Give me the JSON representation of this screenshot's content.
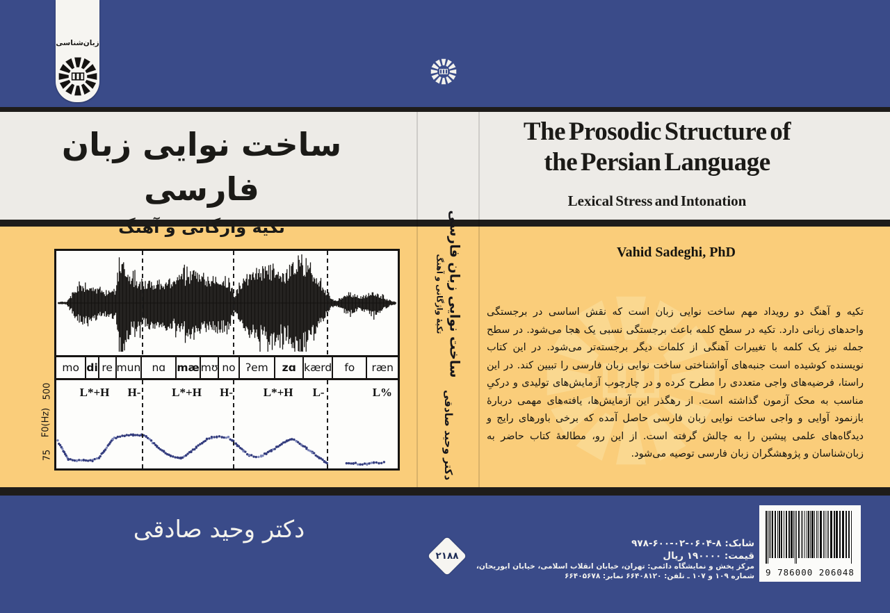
{
  "cover": {
    "publisher_tab": {
      "series_label": "زبان‌شناسی"
    },
    "front": {
      "title_fa": "ساخت نوایی زبان فارسی",
      "subtitle_fa": "تکیهٔ واژگانی و آهنگ",
      "author_fa": "دکتر وحید صادقی"
    },
    "back": {
      "title_en_line1": "The Prosodic Structure of",
      "title_en_line2": "the Persian Language",
      "subtitle_en": "Lexical Stress and Intonation",
      "author_en": "Vahid Sadeghi, PhD",
      "blurb_fa": "تکیه و آهنگ دو رویداد مهم ساخت نوایی زبان است که نقش اساسی در برجستگی واحدهای زبانی دارد. تکیه در سطح کلمه باعث برجستگی نسبی یک هجا می‌شود. در سطح جمله نیز یک کلمه با تغییرات آهنگی از کلمات دیگر برجسته‌تر می‌شود. در این کتاب نویسنده کوشیده است جنبه‌های آواشناختی ساخت نوایی زبان فارسی را تبیین کند. در این راستا، فرضیه‌های واجی متعددی را مطرح کرده و در چارچوب آزمایش‌های تولیدی و درکیِ مناسب به محک آزمون گذاشته است. از رهگذر این آزمایش‌ها، یافته‌های مهمی دربارهٔ بازنمود آوایی و واجی ساخت نوایی زبان فارسی حاصل آمده که برخی باورهای رایج و دیدگاه‌های علمی پیشین را به چالش گرفته است. از این رو، مطالعهٔ کتاب حاضر به زبان‌شناسان و پژوهشگران زبان فارسی توصیه می‌شود.",
      "isbn_label": "شابک:",
      "isbn_value": "۹۷۸-۶۰۰-۰۲-۰۶۰۴-۸",
      "price_line": "قیمت: ۱۹۰۰۰۰ ریال",
      "address_line1": "مرکز پخش و نمایشگاه دائمی: تهران، خیابان انقلاب اسلامی، خیابان ابوریحان،",
      "address_line2": "شماره ۱۰۹ و ۱۰۷ ـ تلفن: ۶۶۴۰۸۱۲۰   نمابر: ۶۶۴۰۵۶۷۸",
      "barcode_digits": "9 786000 206048"
    },
    "spine": {
      "title": "ساخت نوایی زبان فارسی",
      "subtitle": "تکیهٔ واژگانی و آهنگ",
      "author": "دکتر وحید صادقی",
      "code": "۲۱۸۸"
    },
    "colors": {
      "blue": "#3A4B89",
      "yellow": "#FACD7A",
      "cream": "#EDEBE7",
      "band_black": "#1E1C1A",
      "f0_dot": "#343D7E"
    }
  },
  "figure": {
    "type": "waveform-f0",
    "ylabel": "F0(Hz)",
    "ymax": "500",
    "ymin": "75",
    "syllables": [
      {
        "label": "mo",
        "bold": false,
        "w": 9.3
      },
      {
        "label": "di",
        "bold": true,
        "w": 4.1
      },
      {
        "label": "re",
        "bold": false,
        "w": 5.5
      },
      {
        "label": "mun",
        "bold": false,
        "w": 5.7
      },
      {
        "label": "nɑ",
        "bold": false,
        "w": 11.2
      },
      {
        "label": "mæ",
        "bold": true,
        "w": 4.5
      },
      {
        "label": "mʊ",
        "bold": false,
        "w": 4.7
      },
      {
        "label": "no",
        "bold": false,
        "w": 6.5
      },
      {
        "label": "ʔem",
        "bold": false,
        "w": 11.6
      },
      {
        "label": "zɑ",
        "bold": true,
        "w": 9.1
      },
      {
        "label": "kærd",
        "bold": false,
        "w": 6.3
      },
      {
        "label": "fo",
        "bold": false,
        "w": 11.0
      },
      {
        "label": "ræn",
        "bold": false,
        "w": 10.2
      }
    ],
    "boundaries_pct": [
      25.0,
      51.8,
      79.3
    ],
    "tones": [
      {
        "label": "L*+H",
        "x": 11.2
      },
      {
        "label": "H-",
        "x": 22.8
      },
      {
        "label": "L*+H",
        "x": 38.2
      },
      {
        "label": "H-",
        "x": 49.8
      },
      {
        "label": "L*+H",
        "x": 65.0
      },
      {
        "label": "L-",
        "x": 76.8
      },
      {
        "label": "L%",
        "x": 95.5
      }
    ],
    "f0_track": [
      [
        0.4,
        69
      ],
      [
        1.5,
        76
      ],
      [
        2.6,
        84
      ],
      [
        3.5,
        90
      ],
      [
        6,
        91
      ],
      [
        8,
        91
      ],
      [
        10.6,
        91
      ],
      [
        12.5,
        88
      ],
      [
        14,
        80
      ],
      [
        15.5,
        72
      ],
      [
        16.5,
        67
      ],
      [
        18,
        64
      ],
      [
        20,
        63
      ],
      [
        22.5,
        62
      ],
      [
        25,
        62
      ],
      [
        26.3,
        64
      ],
      [
        27.8,
        69
      ],
      [
        29.5,
        75
      ],
      [
        31.5,
        81
      ],
      [
        33.5,
        86
      ],
      [
        35.5,
        88
      ],
      [
        36.5,
        88
      ],
      [
        38,
        85
      ],
      [
        39.5,
        81
      ],
      [
        41,
        76
      ],
      [
        42.7,
        71
      ],
      [
        44.1,
        67
      ],
      [
        45.5,
        65
      ],
      [
        47,
        64
      ],
      [
        48.5,
        64
      ],
      [
        50.4,
        65
      ],
      [
        51.5,
        68
      ],
      [
        53,
        74
      ],
      [
        54.8,
        80
      ],
      [
        56.5,
        85
      ],
      [
        58.5,
        87
      ],
      [
        60,
        86
      ],
      [
        61.5,
        83
      ],
      [
        63,
        80
      ],
      [
        64.5,
        76
      ],
      [
        66,
        72
      ],
      [
        67.5,
        69
      ],
      [
        69,
        67
      ],
      [
        70.3,
        69
      ],
      [
        71.8,
        73
      ],
      [
        73.3,
        77
      ],
      [
        75,
        82
      ],
      [
        77,
        88
      ],
      [
        78.5,
        92
      ],
      [
        79.3,
        94
      ],
      null,
      [
        85,
        94
      ],
      [
        87,
        94
      ],
      [
        89,
        95
      ],
      [
        91,
        95
      ],
      [
        93,
        94
      ],
      [
        94.5,
        94
      ],
      [
        96,
        93
      ]
    ],
    "waveform_envelope": [
      [
        0,
        0.02
      ],
      [
        3,
        0.03
      ],
      [
        4,
        0.12
      ],
      [
        5.5,
        0.28
      ],
      [
        7,
        0.38
      ],
      [
        8.5,
        0.42
      ],
      [
        10,
        0.4
      ],
      [
        12,
        0.3
      ],
      [
        14,
        0.25
      ],
      [
        16,
        0.28
      ],
      [
        17.5,
        0.3
      ],
      [
        18.3,
        0.85
      ],
      [
        19.3,
        1.0
      ],
      [
        20.5,
        0.72
      ],
      [
        22,
        0.58
      ],
      [
        24,
        0.5
      ],
      [
        26,
        0.46
      ],
      [
        28,
        0.44
      ],
      [
        30,
        0.48
      ],
      [
        32,
        0.5
      ],
      [
        34,
        0.48
      ],
      [
        36,
        0.55
      ],
      [
        38,
        0.62
      ],
      [
        40,
        0.66
      ],
      [
        42,
        0.58
      ],
      [
        44,
        0.52
      ],
      [
        46,
        0.56
      ],
      [
        48,
        0.52
      ],
      [
        50,
        0.56
      ],
      [
        51,
        0.44
      ],
      [
        52,
        0.12
      ],
      [
        53,
        0.3
      ],
      [
        54.5,
        0.48
      ],
      [
        56,
        0.6
      ],
      [
        58,
        0.68
      ],
      [
        60,
        0.72
      ],
      [
        62,
        0.78
      ],
      [
        63.5,
        0.82
      ],
      [
        65,
        0.72
      ],
      [
        66.5,
        0.62
      ],
      [
        68,
        0.72
      ],
      [
        70,
        0.95
      ],
      [
        71.5,
        1.0
      ],
      [
        73,
        0.92
      ],
      [
        74.5,
        0.8
      ],
      [
        76,
        0.62
      ],
      [
        77.5,
        0.45
      ],
      [
        79,
        0.25
      ],
      [
        80.5,
        0.1
      ],
      [
        82,
        0.05
      ],
      [
        84,
        0.16
      ],
      [
        85.5,
        0.22
      ],
      [
        87,
        0.2
      ],
      [
        88.5,
        0.12
      ],
      [
        90,
        0.15
      ],
      [
        91.5,
        0.22
      ],
      [
        93,
        0.25
      ],
      [
        94.5,
        0.2
      ],
      [
        96,
        0.12
      ],
      [
        98,
        0.05
      ],
      [
        100,
        0.02
      ]
    ]
  }
}
